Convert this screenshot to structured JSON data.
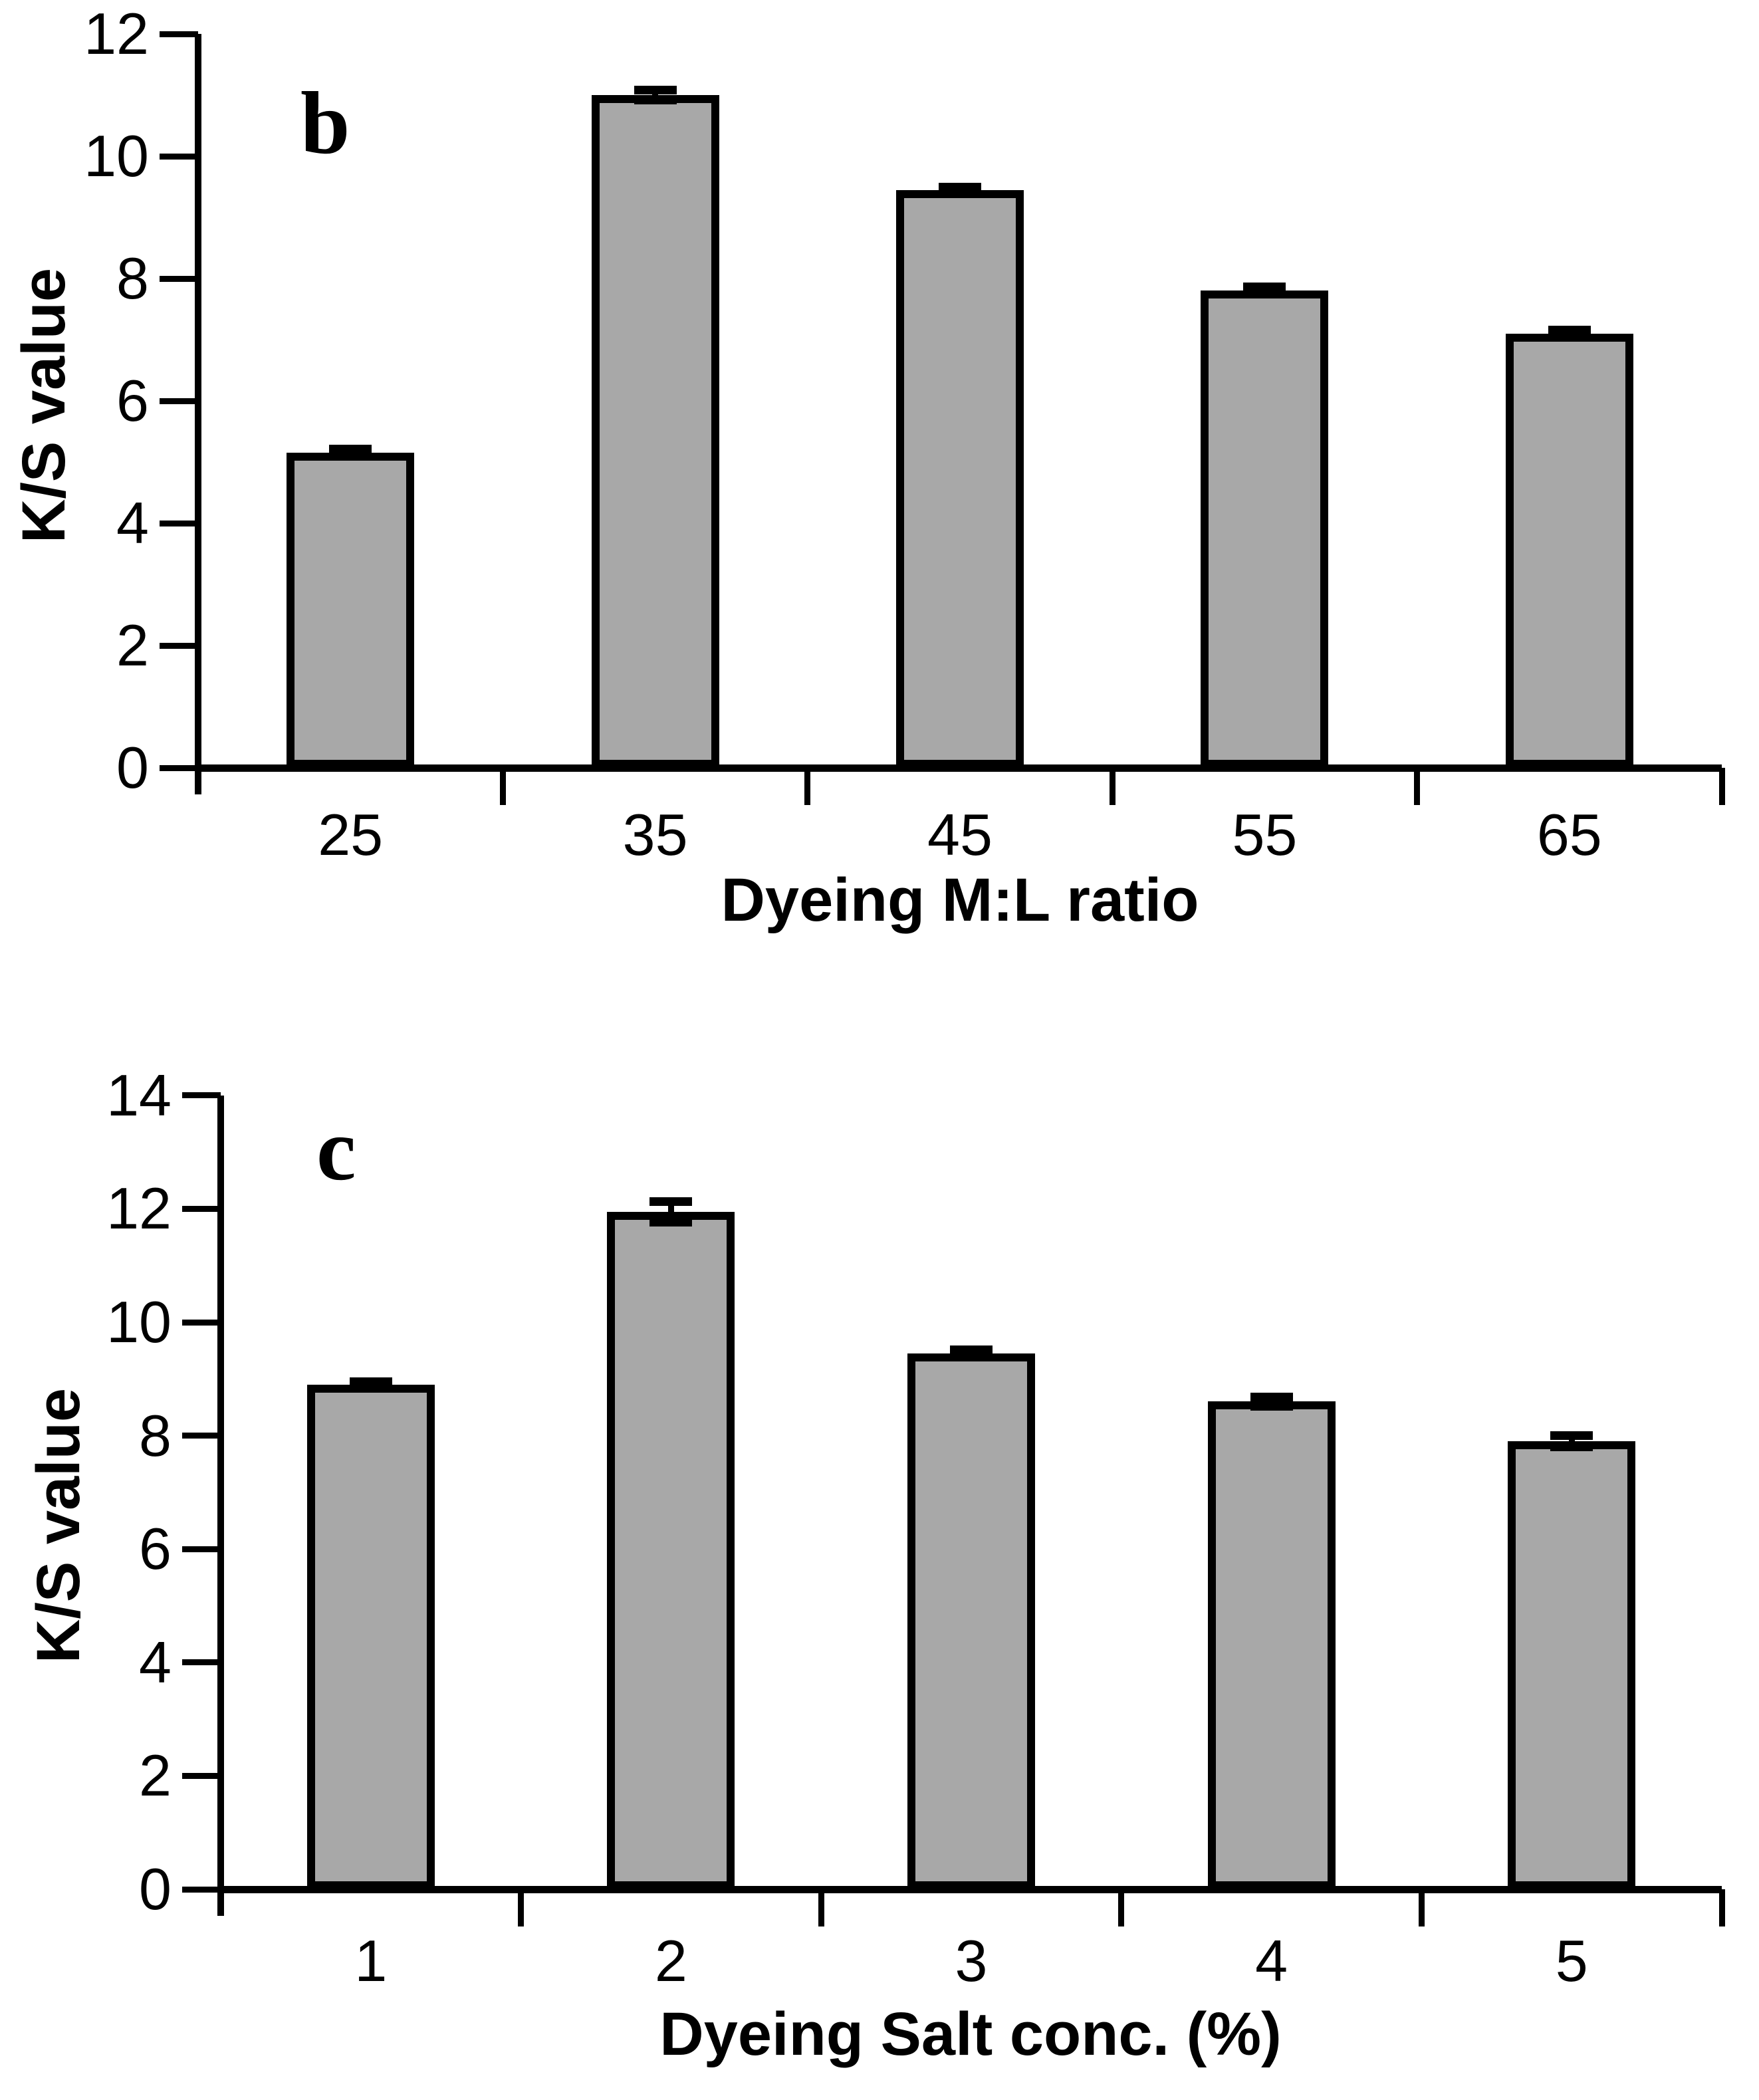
{
  "figure": {
    "background": "#ffffff",
    "panel_labels": [
      "b",
      "c"
    ]
  },
  "chart_data": [
    {
      "type": "bar",
      "panel_label": "b",
      "title": "",
      "xlabel": "Dyeing M:L ratio",
      "ylabel": "K/S value",
      "categories": [
        "25",
        "35",
        "45",
        "55",
        "65"
      ],
      "values": [
        5.15,
        11.0,
        9.45,
        7.8,
        7.1
      ],
      "errors": [
        0.06,
        0.08,
        0.04,
        0.06,
        0.06
      ],
      "ylim": [
        0,
        12
      ],
      "yticks": [
        0,
        2,
        4,
        6,
        8,
        10,
        12
      ],
      "grid": false,
      "legend": null,
      "bar_color": "#a8a8a8",
      "bar_border_color": "#000000",
      "axis_color": "#000000",
      "error_bar_color": "#000000"
    },
    {
      "type": "bar",
      "panel_label": "c",
      "title": "",
      "xlabel": "Dyeing Salt conc. (%)",
      "ylabel": "K/S value",
      "categories": [
        "1",
        "2",
        "3",
        "4",
        "5"
      ],
      "values": [
        8.9,
        11.95,
        9.45,
        8.6,
        7.9
      ],
      "errors": [
        0.05,
        0.18,
        0.06,
        0.08,
        0.1
      ],
      "ylim": [
        0,
        14
      ],
      "yticks": [
        0,
        2,
        4,
        6,
        8,
        10,
        12,
        14
      ],
      "grid": false,
      "legend": null,
      "bar_color": "#a8a8a8",
      "bar_border_color": "#000000",
      "axis_color": "#000000",
      "error_bar_color": "#000000"
    }
  ]
}
